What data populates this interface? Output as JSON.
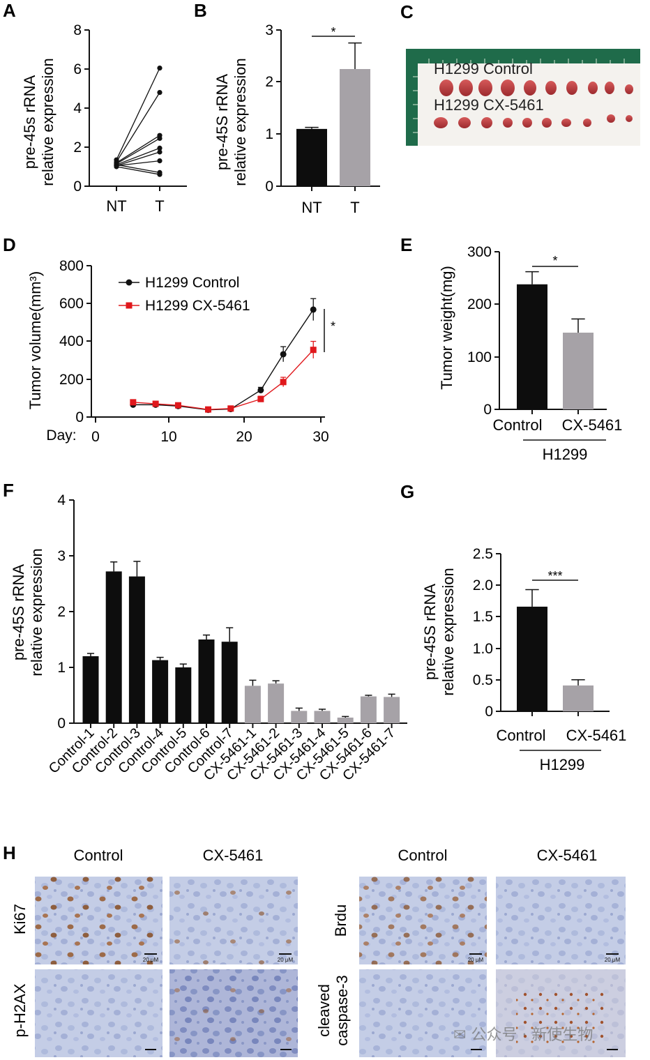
{
  "panels": {
    "A": {
      "letter": "A",
      "chart_data": {
        "type": "line",
        "title": "",
        "ylabel_line1": "pre-45s rRNA",
        "ylabel_line2": "relative expression",
        "categories": [
          "NT",
          "T"
        ],
        "ylim": [
          0,
          8
        ],
        "yticks": [
          "0",
          "2",
          "4",
          "6",
          "8"
        ],
        "pairs": [
          [
            1.35,
            6.05
          ],
          [
            1.25,
            4.8
          ],
          [
            1.2,
            2.6
          ],
          [
            1.15,
            2.45
          ],
          [
            1.1,
            1.95
          ],
          [
            1.05,
            1.75
          ],
          [
            1.05,
            1.3
          ],
          [
            1.1,
            0.7
          ],
          [
            1.0,
            0.6
          ]
        ]
      }
    },
    "B": {
      "letter": "B",
      "chart_data": {
        "type": "bar",
        "ylabel_line1": "pre-45S rRNA",
        "ylabel_line2": "relative expression",
        "categories": [
          "NT",
          "T"
        ],
        "values": [
          1.1,
          2.25
        ],
        "errors": [
          0.03,
          0.5
        ],
        "colors": [
          "#0d0d0d",
          "#a6a2a7"
        ],
        "ylim": [
          0,
          3
        ],
        "yticks": [
          "0",
          "1",
          "2",
          "3"
        ],
        "significance": "*"
      }
    },
    "C": {
      "letter": "C",
      "label_control": "H1299 Control",
      "label_cx": "H1299 CX-5461"
    },
    "D": {
      "letter": "D",
      "chart_data": {
        "type": "line",
        "ylabel": "Tumor volume(mm³)",
        "xlabel_prefix": "Day:",
        "xlim": [
          0,
          30
        ],
        "xticks": [
          "0",
          "10",
          "20",
          "30"
        ],
        "ylim": [
          0,
          800
        ],
        "yticks": [
          "0",
          "200",
          "400",
          "600",
          "800"
        ],
        "significance": "*",
        "series": [
          {
            "name": "H1299 Control",
            "color": "#111111",
            "marker": "circle",
            "x": [
              5,
              8,
              11,
              15,
              18,
              22,
              25,
              29
            ],
            "y": [
              65,
              65,
              58,
              38,
              42,
              142,
              332,
              568
            ],
            "err": [
              8,
              8,
              8,
              6,
              6,
              15,
              40,
              58
            ]
          },
          {
            "name": "H1299 CX-5461",
            "color": "#e0181c",
            "marker": "square",
            "x": [
              5,
              8,
              11,
              15,
              18,
              22,
              25,
              29
            ],
            "y": [
              78,
              70,
              62,
              40,
              45,
              95,
              185,
              355
            ],
            "err": [
              8,
              8,
              8,
              6,
              6,
              15,
              25,
              45
            ]
          }
        ]
      }
    },
    "E": {
      "letter": "E",
      "chart_data": {
        "type": "bar",
        "ylabel": "Tumor weight(mg)",
        "categories": [
          "Control",
          "CX-5461"
        ],
        "group_label": "H1299",
        "values": [
          238,
          146
        ],
        "errors": [
          24,
          26
        ],
        "colors": [
          "#0d0d0d",
          "#a6a2a7"
        ],
        "ylim": [
          0,
          300
        ],
        "yticks": [
          "0",
          "100",
          "200",
          "300"
        ],
        "significance": "*"
      }
    },
    "F": {
      "letter": "F",
      "chart_data": {
        "type": "bar",
        "ylabel_line1": "pre-45S rRNA",
        "ylabel_line2": "relative expression",
        "categories": [
          "Control-1",
          "Control-2",
          "Control-3",
          "Control-4",
          "Control-5",
          "Control-6",
          "Control-7",
          "CX-5461-1",
          "CX-5461-2",
          "CX-5461-3",
          "CX-5461-4",
          "CX-5461-5",
          "CX-5461-6",
          "CX-5461-7"
        ],
        "values": [
          1.2,
          2.72,
          2.63,
          1.13,
          1.0,
          1.5,
          1.46,
          0.67,
          0.71,
          0.22,
          0.22,
          0.1,
          0.48,
          0.47
        ],
        "errors": [
          0.05,
          0.17,
          0.27,
          0.05,
          0.06,
          0.08,
          0.25,
          0.1,
          0.05,
          0.05,
          0.03,
          0.02,
          0.02,
          0.05
        ],
        "colors": [
          "#0d0d0d",
          "#0d0d0d",
          "#0d0d0d",
          "#0d0d0d",
          "#0d0d0d",
          "#0d0d0d",
          "#0d0d0d",
          "#a6a2a7",
          "#a6a2a7",
          "#a6a2a7",
          "#a6a2a7",
          "#a6a2a7",
          "#a6a2a7",
          "#a6a2a7"
        ],
        "ylim": [
          0,
          4
        ],
        "yticks": [
          "0",
          "1",
          "2",
          "3",
          "4"
        ]
      }
    },
    "G": {
      "letter": "G",
      "chart_data": {
        "type": "bar",
        "ylabel_line1": "pre-45S rRNA",
        "ylabel_line2": "relative expression",
        "categories": [
          "Control",
          "CX-5461"
        ],
        "group_label": "H1299",
        "values": [
          1.66,
          0.41
        ],
        "errors": [
          0.27,
          0.09
        ],
        "colors": [
          "#0d0d0d",
          "#a6a2a7"
        ],
        "ylim": [
          0,
          2.5
        ],
        "yticks": [
          "0",
          "0.5",
          "1.0",
          "1.5",
          "2.0",
          "2.5"
        ],
        "significance": "***"
      }
    },
    "H": {
      "letter": "H",
      "col_headers": [
        "Control",
        "CX-5461",
        "Control",
        "CX-5461"
      ],
      "rows": {
        "ki67": "Ki67",
        "brdu": "Brdu",
        "ph2ax": "p-H2AX",
        "cleaved_line1": "cleaved",
        "cleaved_line2": "caspase-3"
      },
      "scale_label": "20 μM"
    }
  },
  "watermark": "公众号 · 新使生物"
}
